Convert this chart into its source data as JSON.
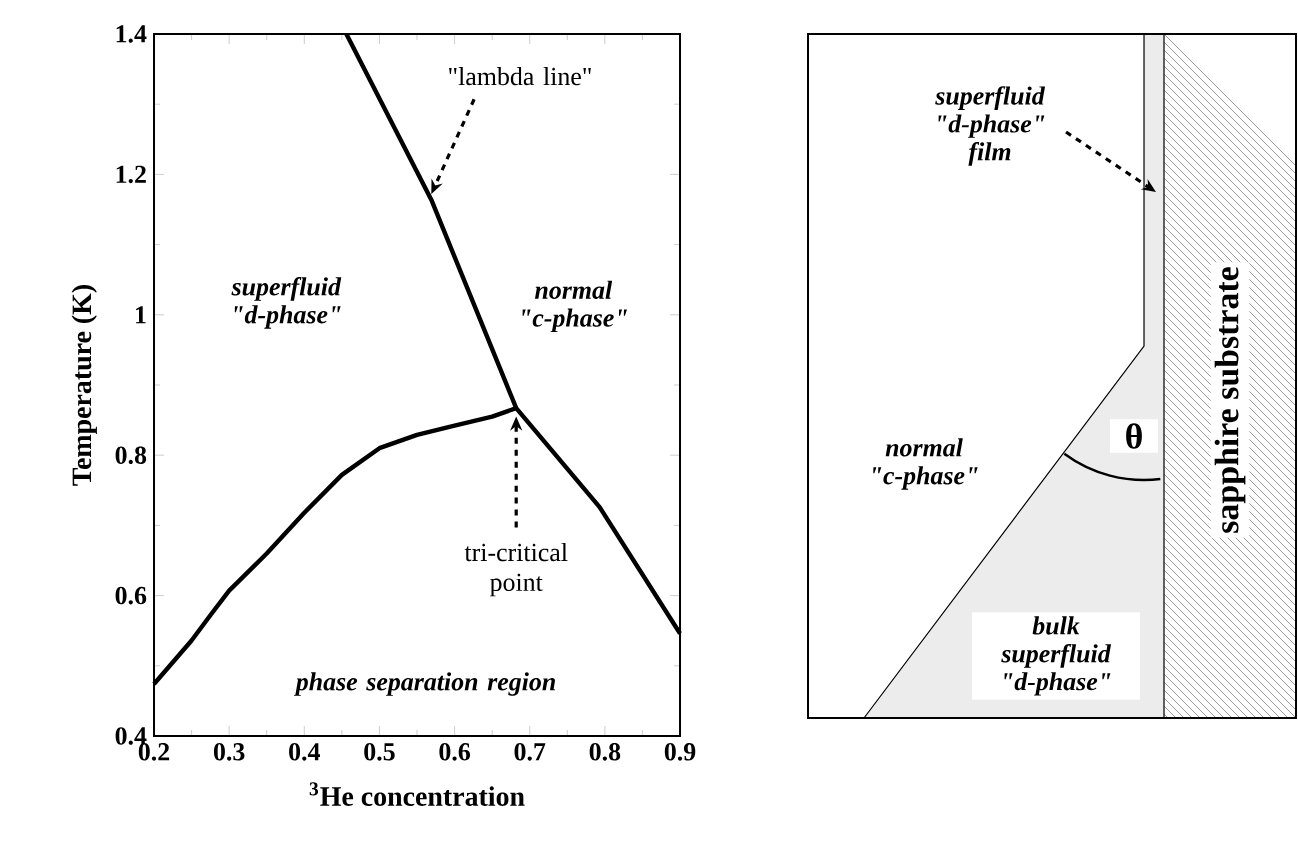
{
  "chart_data": [
    {
      "type": "line",
      "xlabel": "$^{3}$He concentration",
      "ylabel": "Temperature (K)",
      "xlim": [
        0.2,
        0.9
      ],
      "ylim": [
        0.4,
        1.4
      ],
      "xticks": [
        0.2,
        0.3,
        0.4,
        0.5,
        0.6,
        0.7,
        0.8,
        0.9
      ],
      "yticks": [
        0.4,
        0.6,
        0.8,
        1,
        1.2,
        1.4
      ],
      "series": [
        {
          "color": "#000000",
          "x": [
            0.456,
            0.569,
            0.682,
            0.793,
            0.9
          ],
          "values": [
            1.4,
            1.164,
            0.867,
            0.726,
            0.546
          ]
        },
        {
          "color": "#000000",
          "x": [
            0.2,
            0.225,
            0.25,
            0.275,
            0.3,
            0.35,
            0.4,
            0.45,
            0.5,
            0.55,
            0.6,
            0.65,
            0.682
          ],
          "values": [
            0.474,
            0.505,
            0.536,
            0.572,
            0.607,
            0.66,
            0.718,
            0.772,
            0.81,
            0.829,
            0.842,
            0.855,
            0.867
          ]
        }
      ],
      "annotations": [
        "superfluid \"d-phase\"",
        "normal \"c-phase\"",
        "phase separation region",
        {
          "text": "\"lambda line\"",
          "x": 0.569,
          "y": 1.164
        },
        {
          "text": "tri-critical point",
          "x": 0.682,
          "y": 0.867
        }
      ]
    },
    {
      "type": "other",
      "annotations": [
        "superfluid \"d-phase\" film",
        "normal \"c-phase\"",
        "bulk superfluid \"d-phase\"",
        "θ",
        "sapphire substrate"
      ]
    }
  ]
}
